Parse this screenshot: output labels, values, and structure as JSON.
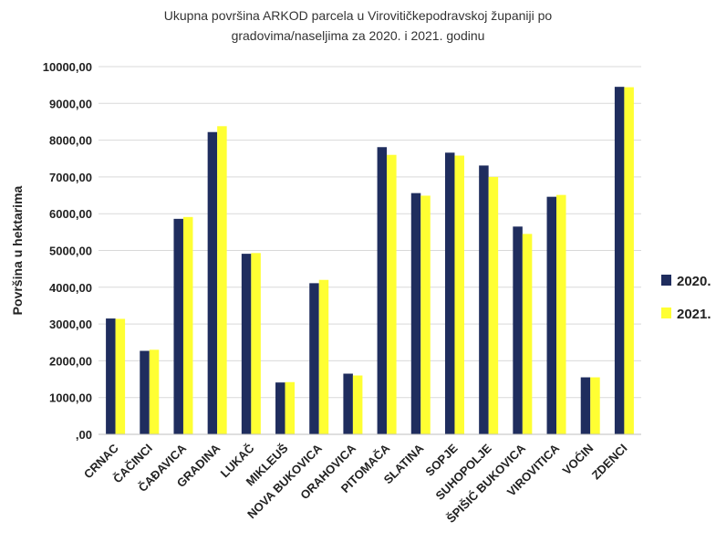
{
  "chart_data": {
    "type": "bar",
    "title_lines": [
      "Ukupna površina ARKOD parcela u Virovitičkepodravskoj županiji po",
      "gradovima/naseljima za 2020. i 2021. godinu"
    ],
    "xlabel": "",
    "ylabel": "Površina u hektarima",
    "ylim": [
      0,
      10000
    ],
    "y_ticks": [
      0,
      1000,
      2000,
      3000,
      4000,
      5000,
      6000,
      7000,
      8000,
      9000,
      10000
    ],
    "y_tick_labels": [
      ",00",
      "1000,00",
      "2000,00",
      "3000,00",
      "4000,00",
      "5000,00",
      "6000,00",
      "7000,00",
      "8000,00",
      "9000,00",
      "10000,00"
    ],
    "grid": true,
    "legend_position": "right",
    "categories": [
      "CRNAC",
      "ČAČINCI",
      "ČAĐAVICA",
      "GRADINA",
      "LUKAČ",
      "MIKLEUŠ",
      "NOVA BUKOVICA",
      "ORAHOVICA",
      "PITOMAČA",
      "SLATINA",
      "SOPJE",
      "SUHOPOLJE",
      "ŠPIŠIĆ BUKOVICA",
      "VIROVITICA",
      "VOĆIN",
      "ZDENCI"
    ],
    "series": [
      {
        "name": "2020.",
        "color": "#1F2D5E",
        "values": [
          3150,
          2270,
          5860,
          8220,
          4910,
          1410,
          4110,
          1650,
          7810,
          6560,
          7660,
          7310,
          5650,
          6460,
          1550,
          9450
        ]
      },
      {
        "name": "2021.",
        "color": "#FFFF33",
        "values": [
          3140,
          2300,
          5910,
          8380,
          4930,
          1420,
          4200,
          1600,
          7600,
          6490,
          7580,
          7000,
          5450,
          6510,
          1550,
          9440
        ]
      }
    ]
  }
}
